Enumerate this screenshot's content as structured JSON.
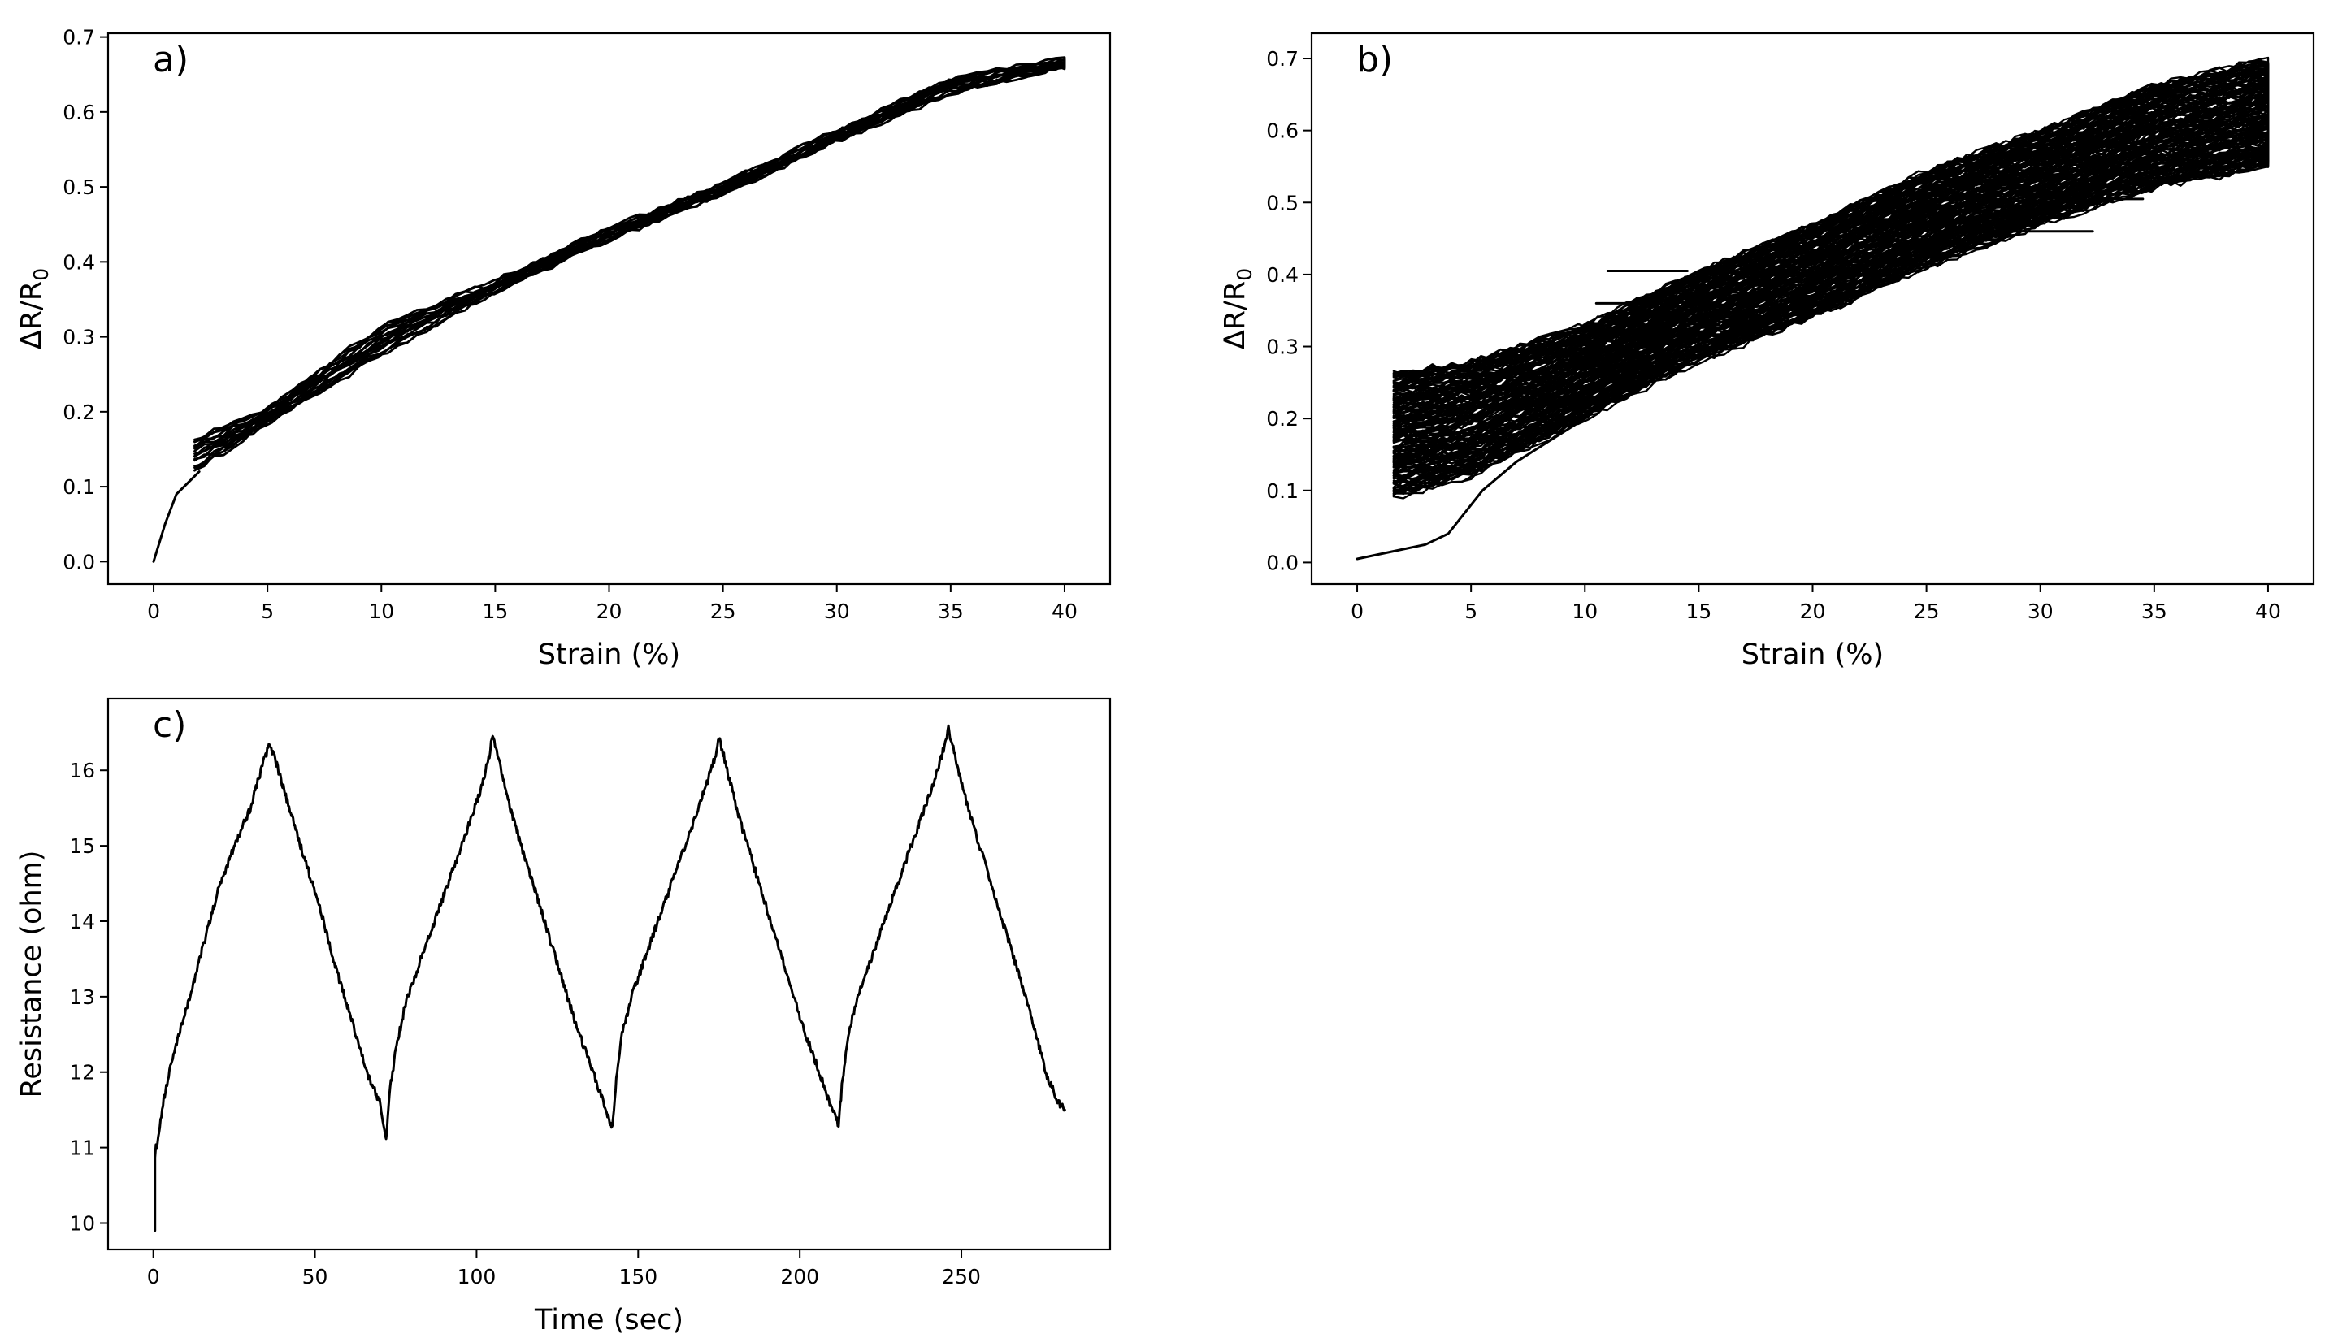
{
  "figure": {
    "background": "#ffffff",
    "line_color": "#000000"
  },
  "chart_data": [
    {
      "panel": "a",
      "panel_label": "a)",
      "type": "line",
      "xlabel": "Strain (%)",
      "ylabel": "ΔR/R0",
      "ylabel_main": "ΔR/R",
      "ylabel_subscript": "0",
      "xlim": [
        -2,
        42
      ],
      "ylim": [
        -0.03,
        0.705
      ],
      "xticks": [
        0,
        5,
        10,
        15,
        20,
        25,
        30,
        35,
        40
      ],
      "yticks": [
        0.0,
        0.1,
        0.2,
        0.3,
        0.4,
        0.5,
        0.6,
        0.7
      ],
      "ytick_labels": [
        "0.0",
        "0.1",
        "0.2",
        "0.3",
        "0.4",
        "0.5",
        "0.6",
        "0.7"
      ],
      "grid": false,
      "series": [
        {
          "kind": "initial_load",
          "x": [
            0,
            0.5,
            1,
            1.5,
            2
          ],
          "y": [
            0.0,
            0.05,
            0.09,
            0.105,
            0.12
          ]
        },
        {
          "kind": "cycles",
          "count": 9,
          "x": [
            1.8,
            5,
            10,
            15,
            20,
            25,
            30,
            35,
            40
          ],
          "y_lower": [
            0.12,
            0.185,
            0.275,
            0.36,
            0.43,
            0.49,
            0.56,
            0.625,
            0.66
          ],
          "y_upper": [
            0.165,
            0.205,
            0.315,
            0.375,
            0.445,
            0.505,
            0.575,
            0.645,
            0.67
          ],
          "noise": 0.004
        }
      ]
    },
    {
      "panel": "b",
      "panel_label": "b)",
      "type": "line",
      "xlabel": "Strain (%)",
      "ylabel": "ΔR/R0",
      "ylabel_main": "ΔR/R",
      "ylabel_subscript": "0",
      "xlim": [
        -2,
        42
      ],
      "ylim": [
        -0.03,
        0.735
      ],
      "xticks": [
        0,
        5,
        10,
        15,
        20,
        25,
        30,
        35,
        40
      ],
      "yticks": [
        0.0,
        0.1,
        0.2,
        0.3,
        0.4,
        0.5,
        0.6,
        0.7
      ],
      "ytick_labels": [
        "0.0",
        "0.1",
        "0.2",
        "0.3",
        "0.4",
        "0.5",
        "0.6",
        "0.7"
      ],
      "grid": false,
      "series": [
        {
          "kind": "initial_load",
          "x": [
            0,
            1.5,
            3,
            4,
            5.5,
            7,
            8.5,
            10
          ],
          "y": [
            0.005,
            0.015,
            0.025,
            0.04,
            0.1,
            0.14,
            0.17,
            0.2
          ]
        },
        {
          "kind": "cycles",
          "count": 80,
          "x": [
            1.6,
            5,
            10,
            15,
            20,
            25,
            30,
            35,
            40
          ],
          "y_lower": [
            0.09,
            0.12,
            0.2,
            0.28,
            0.34,
            0.41,
            0.47,
            0.52,
            0.55
          ],
          "y_upper": [
            0.265,
            0.28,
            0.33,
            0.405,
            0.47,
            0.545,
            0.6,
            0.665,
            0.7
          ],
          "noise": 0.006
        },
        {
          "kind": "stray_segments",
          "segments": [
            {
              "x": [
                11,
                14.5
              ],
              "y": [
                0.405,
                0.405
              ]
            },
            {
              "x": [
                28,
                32.3
              ],
              "y": [
                0.46,
                0.46
              ]
            },
            {
              "x": [
                33,
                34.5
              ],
              "y": [
                0.505,
                0.505
              ]
            },
            {
              "x": [
                10.5,
                12.5
              ],
              "y": [
                0.36,
                0.36
              ]
            }
          ]
        }
      ]
    },
    {
      "panel": "c",
      "panel_label": "c)",
      "type": "line",
      "xlabel": "Time (sec)",
      "ylabel": "Resistance (ohm)",
      "xlim": [
        -14,
        296
      ],
      "ylim": [
        9.65,
        16.95
      ],
      "xticks": [
        0,
        50,
        100,
        150,
        200,
        250
      ],
      "yticks": [
        10,
        11,
        12,
        13,
        14,
        15,
        16
      ],
      "grid": false,
      "series": [
        {
          "kind": "time_series",
          "x": [
            0.5,
            0.5,
            0.8,
            1,
            3,
            6,
            10,
            15,
            20,
            25,
            30,
            34,
            36,
            38,
            42,
            47,
            52,
            57,
            62,
            66,
            70,
            72,
            73,
            75,
            78,
            82,
            87,
            92,
            97,
            101,
            104,
            105,
            107,
            111,
            116,
            121,
            126,
            131,
            136,
            140,
            142,
            143,
            145,
            148,
            152,
            157,
            162,
            167,
            171,
            174,
            175,
            177,
            181,
            186,
            191,
            196,
            201,
            206,
            210,
            212,
            213,
            215,
            218,
            222,
            227,
            232,
            237,
            241,
            244,
            246,
            248,
            252,
            257,
            262,
            267,
            272,
            276,
            280,
            282
          ],
          "y": [
            9.9,
            10.9,
            11.0,
            11.0,
            11.6,
            12.2,
            12.8,
            13.6,
            14.4,
            15.0,
            15.5,
            16.1,
            16.35,
            16.1,
            15.5,
            14.8,
            14.1,
            13.3,
            12.6,
            12.0,
            11.6,
            11.1,
            11.7,
            12.3,
            12.9,
            13.4,
            14.0,
            14.6,
            15.2,
            15.7,
            16.2,
            16.5,
            16.1,
            15.4,
            14.7,
            14.0,
            13.3,
            12.6,
            12.0,
            11.5,
            11.25,
            11.8,
            12.5,
            13.0,
            13.5,
            14.1,
            14.7,
            15.3,
            15.8,
            16.2,
            16.45,
            16.1,
            15.4,
            14.7,
            14.0,
            13.3,
            12.6,
            12.0,
            11.5,
            11.3,
            11.8,
            12.5,
            13.0,
            13.5,
            14.1,
            14.7,
            15.3,
            15.8,
            16.2,
            16.55,
            16.2,
            15.5,
            14.8,
            14.1,
            13.4,
            12.7,
            12.0,
            11.6,
            11.5
          ],
          "noise": 0.05
        }
      ]
    }
  ]
}
